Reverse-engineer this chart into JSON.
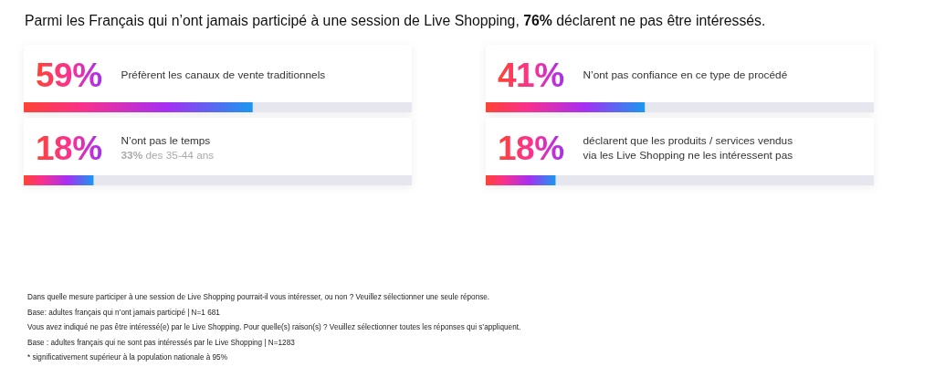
{
  "chart_data": [
    {
      "type": "bar",
      "orientation": "horizontal",
      "title": "Parmi les Français qui n’ont jamais participé à une session de Live Shopping, 76% déclarent ne pas être intéressés.",
      "categories": [
        "Préfèrent les canaux de vente traditionnels",
        "N’ont pas le temps"
      ],
      "values": [
        59,
        18
      ],
      "value_labels": [
        "59%",
        "18%"
      ],
      "color": "#a62ff2",
      "xlim": [
        0,
        100
      ],
      "annotations": [
        "33% des 35-44 ans"
      ]
    },
    {
      "type": "bar",
      "orientation": "horizontal",
      "categories": [
        "N’ont pas confiance en ce type de procédé",
        "déclarent que les produits / services vendus via les Live Shopping ne les intéressent pas"
      ],
      "values": [
        41,
        18
      ],
      "value_labels": [
        "41%",
        "18%"
      ],
      "color": "#a62ff2",
      "xlim": [
        0,
        100
      ]
    },
    {
      "type": "other",
      "annotations": [
        "Dans quelle mesure participer à une session de Live Shopping pourrait-il vous intéresser, ou non ? Veuillez sélectionner une seule réponse.",
        "Base: adultes français qui n’ont jamais participé | N=1 681",
        "Vous avez indiqué ne pas être intéressé(e) par le Live Shopping. Pour quelle(s) raison(s) ? Veuillez sélectionner toutes les réponses qui s’appliquent.",
        "Base : adultes français qui ne sont pas intéressés par le Live Shopping | N=1283",
        "* significativement supérieur à la population nationale à 95%"
      ]
    }
  ]
}
